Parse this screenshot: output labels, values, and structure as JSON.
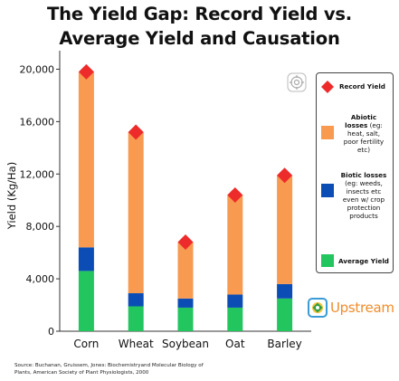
{
  "title_line1": "The Yield Gap: Record Yield vs.",
  "title_line2": "Average Yield and Causation",
  "chart_data": {
    "type": "bar",
    "stacked": true,
    "categories": [
      "Corn",
      "Wheat",
      "Soybean",
      "Oat",
      "Barley"
    ],
    "series": [
      {
        "name": "Average Yield",
        "color": "#22c55e",
        "values": [
          4600,
          1900,
          1800,
          1800,
          2500
        ]
      },
      {
        "name": "Biotic losses",
        "color": "#0b4db5",
        "values": [
          1800,
          1000,
          700,
          1000,
          1100
        ]
      },
      {
        "name": "Abiotic losses",
        "color": "#f89a4f",
        "values": [
          13400,
          12300,
          4300,
          7600,
          8300
        ]
      }
    ],
    "record_yield": {
      "name": "Record Yield",
      "color": "#ee2b2b",
      "values": [
        19800,
        15200,
        6800,
        10400,
        11900
      ]
    },
    "ylabel": "Yield (Kg/Ha)",
    "ylim": [
      0,
      21000
    ],
    "yticks": [
      0,
      4000,
      8000,
      12000,
      16000,
      20000
    ],
    "ytick_labels": [
      "0",
      "4,000",
      "8,000",
      "12,000",
      "16,000",
      "20,000"
    ],
    "grid": false,
    "legend_position": "right"
  },
  "legend": {
    "record": "Record Yield",
    "abiotic_bold": "Abiotic losses",
    "abiotic_rest": "(eg: heat, salt, poor fertility etc)",
    "biotic_bold": "Biotic losses",
    "biotic_rest": "(eg: weeds, insects etc even w/ crop protection products",
    "average": "Average Yield"
  },
  "brand": {
    "name": "Upstream",
    "text_color": "#f28c28",
    "icon": "upstream-logo-icon"
  },
  "icons": {
    "target": "crosshair-target-icon"
  },
  "source_line1": "Source: Buchanan, Gruissem, Jones: Biochemistryand Molecular Biology of",
  "source_line2": "Plants, American Society of Plant Physiologists, 2000"
}
